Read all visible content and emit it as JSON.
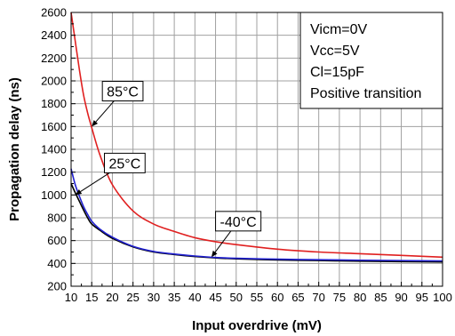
{
  "chart_data": {
    "type": "line",
    "xlabel": "Input overdrive (mV)",
    "ylabel": "Propagation delay (ns)",
    "xlim": [
      10,
      100
    ],
    "ylim": [
      200,
      2600
    ],
    "x_ticks": [
      10,
      15,
      20,
      25,
      30,
      35,
      40,
      45,
      50,
      55,
      60,
      65,
      70,
      75,
      80,
      85,
      90,
      95,
      100
    ],
    "y_ticks": [
      200,
      400,
      600,
      800,
      1000,
      1200,
      1400,
      1600,
      1800,
      2000,
      2200,
      2400,
      2600
    ],
    "grid": true,
    "series": [
      {
        "name": "85°C",
        "color": "#e02020",
        "x": [
          10,
          11,
          12,
          13,
          14,
          15,
          17,
          20,
          25,
          30,
          35,
          40,
          45,
          50,
          60,
          70,
          80,
          90,
          100
        ],
        "y": [
          2600,
          2350,
          2100,
          1880,
          1720,
          1590,
          1350,
          1090,
          860,
          745,
          680,
          625,
          590,
          565,
          525,
          500,
          485,
          470,
          455
        ]
      },
      {
        "name": "25°C",
        "color": "#2020d0",
        "x": [
          10,
          11,
          12,
          13,
          14,
          15,
          17,
          20,
          25,
          30,
          35,
          40,
          45,
          50,
          60,
          70,
          80,
          90,
          100
        ],
        "y": [
          1230,
          1090,
          990,
          900,
          830,
          770,
          700,
          630,
          550,
          505,
          482,
          465,
          452,
          445,
          437,
          432,
          428,
          425,
          422
        ]
      },
      {
        "name": "-40°C",
        "color": "#000000",
        "x": [
          10,
          11,
          12,
          13,
          14,
          15,
          17,
          20,
          25,
          30,
          35,
          40,
          45,
          50,
          60,
          70,
          80,
          90,
          100
        ],
        "y": [
          1100,
          1020,
          945,
          870,
          800,
          745,
          690,
          620,
          545,
          500,
          478,
          460,
          448,
          440,
          430,
          425,
          420,
          416,
          413
        ]
      }
    ],
    "annotations": [
      {
        "text": "85°C",
        "at_x": 15,
        "at_y": 1600,
        "box_x": 22.5,
        "box_y": 1910
      },
      {
        "text": "25°C",
        "at_x": 11,
        "at_y": 1000,
        "box_x": 23,
        "box_y": 1280
      },
      {
        "text": "-40°C",
        "at_x": 44,
        "at_y": 455,
        "box_x": 50.5,
        "box_y": 770
      }
    ],
    "info_box": {
      "lines": [
        "Vicm=0V",
        "Vcc=5V",
        "Cl=15pF",
        "Positive transition"
      ],
      "placement": "top-right"
    }
  }
}
